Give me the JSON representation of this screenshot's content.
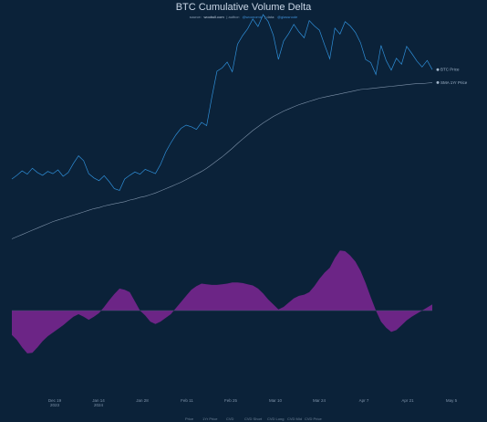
{
  "chart_data": {
    "type": "line",
    "title": "BTC Cumulative Volume Delta",
    "subtitle": {
      "source_label": "source:",
      "source": "woobull.com",
      "author_label": "| author:",
      "author": "@woonomic",
      "data_label": "| data:",
      "data": "@glassnode"
    },
    "x_ticks": [
      "Dec 19\n2023",
      "Jan 14\n2024",
      "Jan 28",
      "Feb 11",
      "Feb 25",
      "Mar 10",
      "Mar 24",
      "Apr 7",
      "Apr 21",
      "May 5"
    ],
    "series": [
      {
        "name": "BTC Price",
        "color": "#2f8fd8",
        "values": [
          41.9,
          42.6,
          43.4,
          42.8,
          43.9,
          43.1,
          42.6,
          43.3,
          42.9,
          43.6,
          42.4,
          43.1,
          44.8,
          46.2,
          45.3,
          42.9,
          42.1,
          41.6,
          42.5,
          41.4,
          40.1,
          39.8,
          41.9,
          42.6,
          43.2,
          42.8,
          43.7,
          43.3,
          42.9,
          44.6,
          46.9,
          48.6,
          50.1,
          51.3,
          51.9,
          51.6,
          51.1,
          52.4,
          51.8,
          57.1,
          61.9,
          62.5,
          63.6,
          61.8,
          66.9,
          68.5,
          69.8,
          71.6,
          70.2,
          72.4,
          71.1,
          68.6,
          64.1,
          67.5,
          68.9,
          70.6,
          69.2,
          68.1,
          71.3,
          70.3,
          69.5,
          66.8,
          64.2,
          69.9,
          68.8,
          71.1,
          70.3,
          69.1,
          67.2,
          64.1,
          63.5,
          61.3,
          66.7,
          63.9,
          62.1,
          64.3,
          63.2,
          66.5,
          65.2,
          63.8,
          62.7,
          63.9,
          62.2
        ]
      },
      {
        "name": "SMA 1Yr Price",
        "color": "#7f93aa",
        "values": [
          30.8,
          31.2,
          31.6,
          32.0,
          32.4,
          32.8,
          33.2,
          33.6,
          34.0,
          34.3,
          34.6,
          34.9,
          35.2,
          35.5,
          35.8,
          36.1,
          36.4,
          36.6,
          36.9,
          37.1,
          37.3,
          37.5,
          37.7,
          38.0,
          38.2,
          38.5,
          38.7,
          39.0,
          39.3,
          39.7,
          40.1,
          40.5,
          40.9,
          41.3,
          41.8,
          42.3,
          42.8,
          43.3,
          43.9,
          44.6,
          45.3,
          46.0,
          46.8,
          47.6,
          48.5,
          49.3,
          50.1,
          50.9,
          51.6,
          52.3,
          52.9,
          53.5,
          54.0,
          54.5,
          54.9,
          55.3,
          55.7,
          56.0,
          56.3,
          56.6,
          56.9,
          57.1,
          57.3,
          57.5,
          57.7,
          57.9,
          58.1,
          58.3,
          58.5,
          58.6,
          58.7,
          58.8,
          58.9,
          59.0,
          59.1,
          59.2,
          59.3,
          59.4,
          59.5,
          59.6,
          59.6,
          59.7,
          59.8
        ]
      },
      {
        "name": "CVD",
        "color": "#6c2586",
        "values": [
          -40,
          -48,
          -60,
          -70,
          -69,
          -60,
          -50,
          -42,
          -36,
          -30,
          -24,
          -17,
          -10,
          -6,
          -10,
          -15,
          -10,
          -4,
          6,
          17,
          27,
          36,
          34,
          30,
          15,
          0,
          -8,
          -18,
          -22,
          -18,
          -12,
          -6,
          4,
          14,
          24,
          34,
          40,
          44,
          43,
          42,
          42,
          43,
          44,
          46,
          46,
          45,
          43,
          41,
          36,
          28,
          18,
          10,
          2,
          6,
          13,
          20,
          24,
          26,
          30,
          40,
          52,
          62,
          70,
          86,
          98,
          97,
          90,
          80,
          65,
          45,
          22,
          0,
          -18,
          -28,
          -35,
          -32,
          -24,
          -16,
          -10,
          -5,
          0,
          5,
          10
        ]
      }
    ],
    "legend": [
      "Price",
      "1Yr Price",
      "CVD",
      "CVD Short",
      "CVD Long",
      "CVD Mid",
      "CVD Price"
    ]
  },
  "side_labels": {
    "price_label": "BTC Price",
    "sma_label": "SMA 1Yr Price"
  },
  "colors": {
    "background": "#0b2239",
    "price": "#2f8fd8",
    "sma": "#7f93aa",
    "cvd": "#6c2586"
  }
}
